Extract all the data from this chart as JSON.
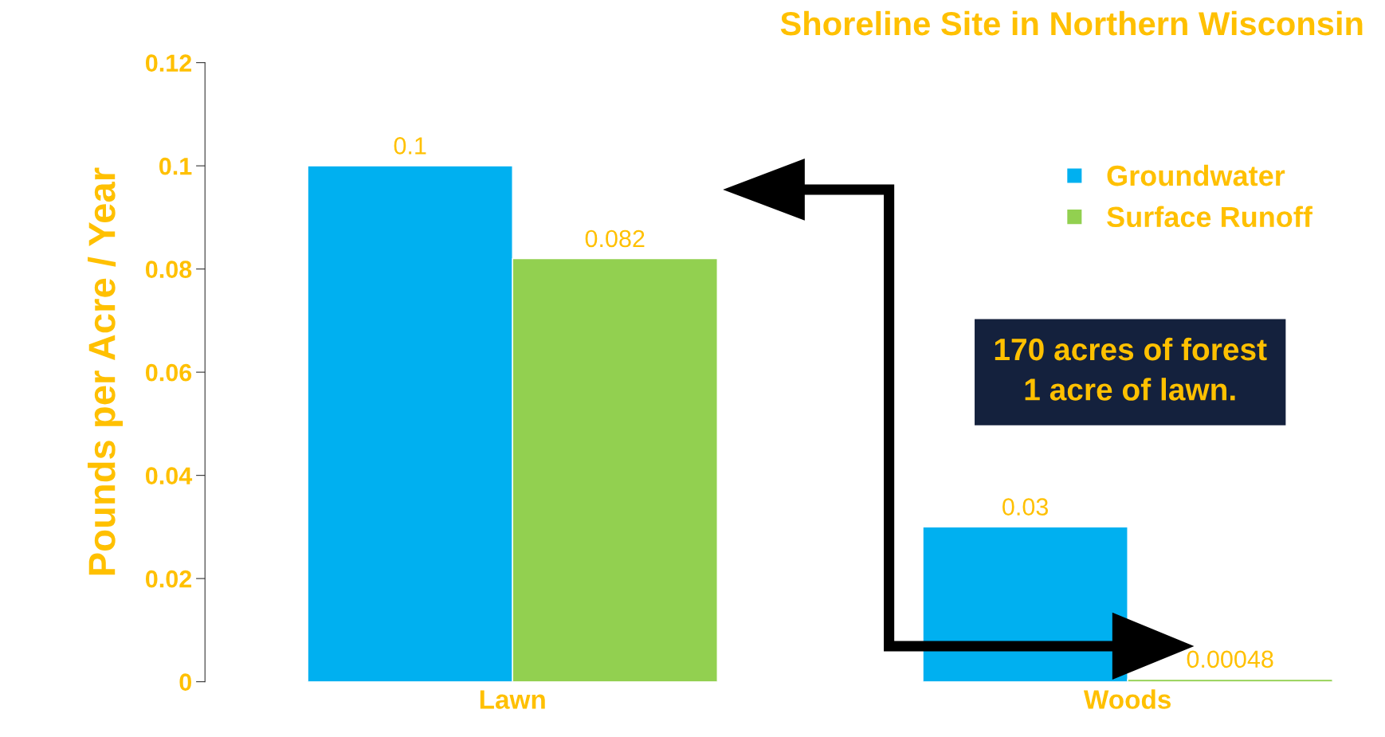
{
  "chart_data": {
    "type": "bar",
    "title": "Shoreline Site in Northern Wisconsin",
    "ylabel": "Pounds per Acre / Year",
    "categories": [
      "Lawn",
      "Woods"
    ],
    "series": [
      {
        "name": "Groundwater",
        "color": "#00b0f0",
        "values": [
          0.1,
          0.03
        ]
      },
      {
        "name": "Surface Runoff",
        "color": "#92d050",
        "values": [
          0.082,
          0.00048
        ]
      }
    ],
    "ylim": [
      0,
      0.12
    ],
    "yticks": [
      0,
      0.02,
      0.04,
      0.06,
      0.08,
      0.1,
      0.12
    ],
    "grid": false,
    "legend": "right",
    "data_labels": true,
    "annotations": [
      "170 acres of forest\n1 acre of lawn."
    ]
  }
}
